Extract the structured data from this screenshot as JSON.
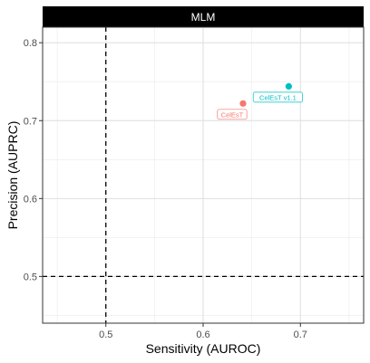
{
  "chart_data": {
    "type": "scatter",
    "facet_title": "MLM",
    "xlabel": "Sensitivity (AUROC)",
    "ylabel": "Precision (AUPRC)",
    "xlim": [
      0.435,
      0.765
    ],
    "ylim": [
      0.44,
      0.82
    ],
    "x_ticks": [
      0.5,
      0.6,
      0.7
    ],
    "x_tick_labels": [
      "0.5",
      "0.6",
      "0.7"
    ],
    "y_ticks": [
      0.5,
      0.6,
      0.7,
      0.8
    ],
    "y_tick_labels": [
      "0.5",
      "0.6",
      "0.7",
      "0.8"
    ],
    "grid": true,
    "reference_lines": [
      {
        "orientation": "vertical",
        "value": 0.5,
        "style": "dashed"
      },
      {
        "orientation": "horizontal",
        "value": 0.5,
        "style": "dashed"
      }
    ],
    "points": [
      {
        "label": "CelEsT",
        "x": 0.641,
        "y": 0.722,
        "color": "#f8766d"
      },
      {
        "label": "CelEsT v1.1",
        "x": 0.688,
        "y": 0.744,
        "color": "#00bfc4"
      }
    ]
  }
}
